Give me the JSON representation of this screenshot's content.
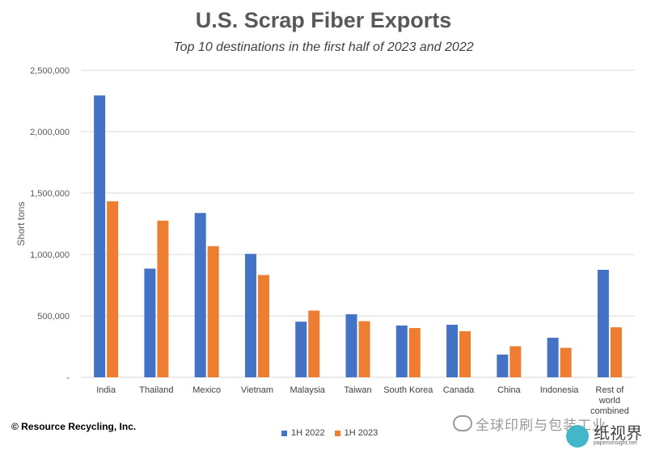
{
  "chart_data": {
    "type": "bar",
    "title": "U.S. Scrap Fiber Exports",
    "subtitle": "Top 10 destinations in the first half of 2023 and 2022",
    "ylabel": "Short tons",
    "xlabel": "",
    "ylim": [
      0,
      2500000
    ],
    "yticks": [
      0,
      500000,
      1000000,
      1500000,
      2000000,
      2500000
    ],
    "ytick_labels": [
      "-",
      "500,000",
      "1,000,000",
      "1,500,000",
      "2,000,000",
      "2,500,000"
    ],
    "grid": true,
    "legend_position": "bottom",
    "categories": [
      "India",
      "Thailand",
      "Mexico",
      "Vietnam",
      "Malaysia",
      "Taiwan",
      "South Korea",
      "Canada",
      "China",
      "Indonesia",
      "Rest of world combined"
    ],
    "category_lines": [
      [
        "India"
      ],
      [
        "Thailand"
      ],
      [
        "Mexico"
      ],
      [
        "Vietnam"
      ],
      [
        "Malaysia"
      ],
      [
        "Taiwan"
      ],
      [
        "South Korea"
      ],
      [
        "Canada"
      ],
      [
        "China"
      ],
      [
        "Indonesia"
      ],
      [
        "Rest of",
        "world",
        "combined"
      ]
    ],
    "series": [
      {
        "name": "1H 2022",
        "color": "#4472C4",
        "values": [
          2295000,
          885000,
          1338000,
          1005000,
          453000,
          513000,
          422000,
          428000,
          185000,
          322000,
          875000
        ]
      },
      {
        "name": "1H 2023",
        "color": "#ED7D31",
        "values": [
          1433000,
          1275000,
          1068000,
          833000,
          543000,
          457000,
          401000,
          375000,
          253000,
          240000,
          407000
        ]
      }
    ]
  },
  "footer": {
    "copyright": "© Resource Recycling, Inc."
  },
  "watermark": {
    "text": "全球印刷与包装工业",
    "brand": "纸视界",
    "url": "papersinsight.net"
  }
}
